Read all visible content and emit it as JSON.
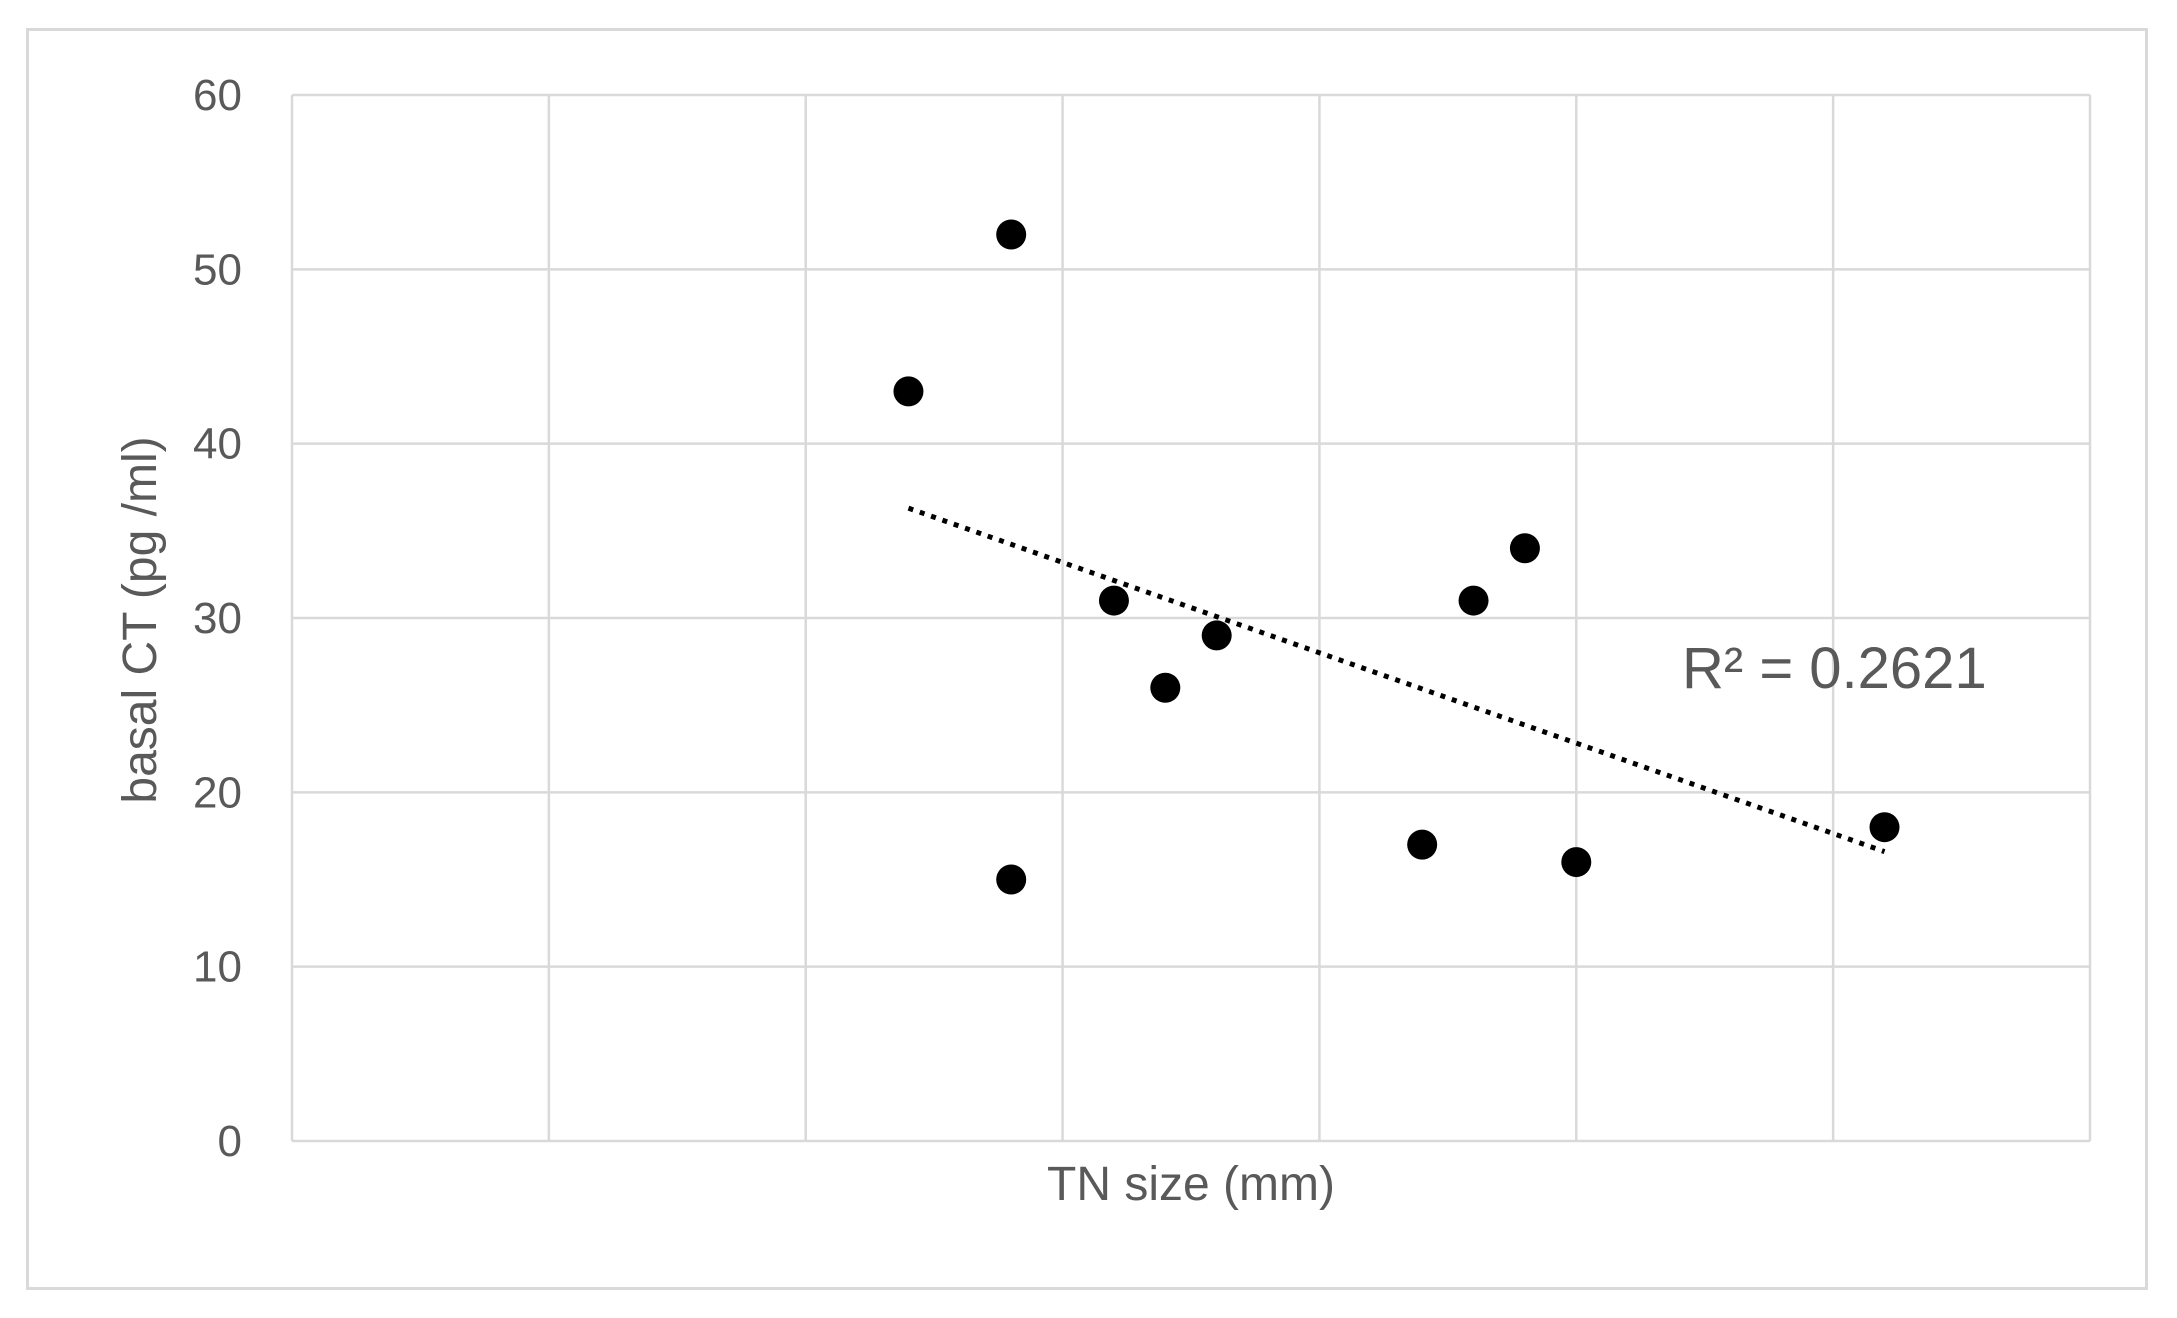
{
  "chart_data": {
    "type": "scatter",
    "title": "",
    "xlabel": "TN size (mm)",
    "ylabel": "basal CT (pg /ml)",
    "xlim": [
      0,
      70
    ],
    "ylim": [
      0,
      60
    ],
    "x_ticks": [],
    "y_ticks": [
      "0",
      "10",
      "20",
      "30",
      "40",
      "50",
      "60"
    ],
    "grid": true,
    "series": [
      {
        "points": [
          {
            "x": 24,
            "y": 43
          },
          {
            "x": 28,
            "y": 52
          },
          {
            "x": 28,
            "y": 15
          },
          {
            "x": 32,
            "y": 31
          },
          {
            "x": 34,
            "y": 26
          },
          {
            "x": 36,
            "y": 29
          },
          {
            "x": 44,
            "y": 17
          },
          {
            "x": 46,
            "y": 31
          },
          {
            "x": 48,
            "y": 34
          },
          {
            "x": 50,
            "y": 16
          },
          {
            "x": 62,
            "y": 18
          }
        ],
        "color": "#000000"
      }
    ],
    "trendline": {
      "style": "dotted",
      "color": "#000000",
      "x_start": 24,
      "y_start": 36.3,
      "x_end": 62,
      "y_end": 16.6
    },
    "annotations": [
      "R² = 0.2621"
    ]
  }
}
